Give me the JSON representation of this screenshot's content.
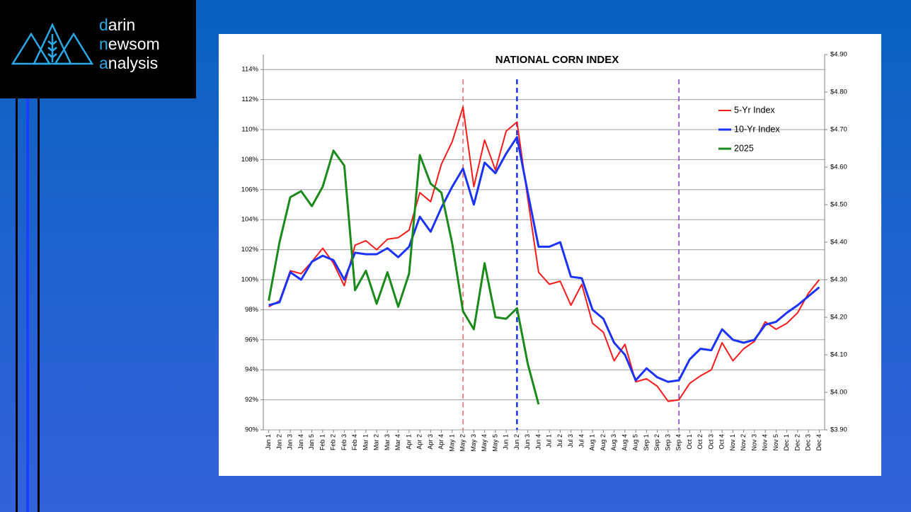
{
  "logo": {
    "lines": [
      {
        "accent": "d",
        "rest": "arin"
      },
      {
        "accent": "n",
        "rest": "ewsom"
      },
      {
        "accent": "a",
        "rest": "nalysis"
      }
    ]
  },
  "chart_data": {
    "type": "line",
    "title": "NATIONAL CORN INDEX",
    "categories": [
      "Jan 1",
      "Jan 2",
      "Jan 3",
      "Jan 4",
      "Jan 5",
      "Feb 1",
      "Feb 2",
      "Feb 3",
      "Feb 4",
      "Mar 1",
      "Mar 2",
      "Mar 3",
      "Mar 4",
      "Apr 1",
      "Apr 2",
      "Apr 3",
      "Apr 4",
      "May 1",
      "May 2",
      "May 3",
      "May 4",
      "May 5",
      "Jun 1",
      "Jun 2",
      "Jun 3",
      "Jun 4",
      "Jul 1",
      "Jul 2",
      "Jul 3",
      "Jul 4",
      "Aug 1",
      "Aug 2",
      "Aug 3",
      "Aug 4",
      "Aug 5",
      "Sep 1",
      "Sep 2",
      "Sep 3",
      "Sep 4",
      "Oct 1",
      "Oct 2",
      "Oct 3",
      "Oct 4",
      "Nov 1",
      "Nov 2",
      "Nov 3",
      "Nov 4",
      "Nov 5",
      "Dec 1",
      "Dec 2",
      "Dec 3",
      "Dec 4"
    ],
    "series": [
      {
        "name": "5-Yr Index",
        "color": "#ff1a1a",
        "width": 2,
        "values": [
          98.2,
          98.6,
          100.6,
          100.4,
          101.2,
          102.1,
          101.1,
          99.6,
          102.3,
          102.6,
          102.0,
          102.7,
          102.8,
          103.3,
          105.8,
          105.2,
          107.7,
          109.2,
          111.5,
          106.2,
          109.3,
          107.3,
          109.9,
          110.5,
          105.4,
          100.5,
          99.7,
          99.9,
          98.3,
          99.7,
          97.1,
          96.5,
          94.6,
          95.7,
          93.2,
          93.4,
          92.9,
          91.9,
          92.0,
          93.1,
          93.6,
          94.0,
          95.8,
          94.6,
          95.4,
          95.9,
          97.2,
          96.7,
          97.1,
          97.8,
          99.1,
          100.0
        ]
      },
      {
        "name": "10-Yr Index",
        "color": "#1a33ff",
        "width": 3,
        "values": [
          98.3,
          98.5,
          100.5,
          100.0,
          101.2,
          101.6,
          101.3,
          100.0,
          101.8,
          101.7,
          101.7,
          102.1,
          101.5,
          102.2,
          104.2,
          103.2,
          104.8,
          106.2,
          107.4,
          105.0,
          107.8,
          107.1,
          108.4,
          109.5,
          105.8,
          102.2,
          102.2,
          102.5,
          100.2,
          100.1,
          98.0,
          97.4,
          95.8,
          95.0,
          93.3,
          94.1,
          93.5,
          93.2,
          93.3,
          94.7,
          95.4,
          95.3,
          96.7,
          96.0,
          95.8,
          96.0,
          97.0,
          97.2,
          97.8,
          98.3,
          98.9,
          99.5
        ]
      },
      {
        "name": "2025",
        "color": "#1a8a1a",
        "width": 3,
        "values": [
          98.6,
          102.5,
          105.5,
          105.9,
          104.9,
          106.2,
          108.6,
          107.6,
          99.3,
          100.6,
          98.4,
          100.5,
          98.2,
          100.4,
          108.3,
          106.4,
          105.8,
          102.4,
          97.9,
          96.7,
          101.1,
          97.5,
          97.4,
          98.1,
          94.4,
          91.7,
          null,
          null,
          null,
          null,
          null,
          null,
          null,
          null,
          null,
          null,
          null,
          null,
          null,
          null,
          null,
          null,
          null,
          null,
          null,
          null,
          null,
          null,
          null,
          null,
          null,
          null
        ]
      }
    ],
    "ylim": [
      90,
      115
    ],
    "yticks": [
      {
        "value": 90,
        "label": "90%"
      },
      {
        "value": 92,
        "label": "92%"
      },
      {
        "value": 94,
        "label": "94%"
      },
      {
        "value": 96,
        "label": "96%"
      },
      {
        "value": 98,
        "label": "98%"
      },
      {
        "value": 100,
        "label": "100%"
      },
      {
        "value": 102,
        "label": "102%"
      },
      {
        "value": 104,
        "label": "104%"
      },
      {
        "value": 106,
        "label": "106%"
      },
      {
        "value": 108,
        "label": "108%"
      },
      {
        "value": 110,
        "label": "110%"
      },
      {
        "value": 112,
        "label": "112%"
      },
      {
        "value": 114,
        "label": "114%"
      }
    ],
    "y2lim": [
      3.9,
      4.9
    ],
    "y2ticks": [
      {
        "value": 3.9,
        "label": "$3.90"
      },
      {
        "value": 4.0,
        "label": "$4.00"
      },
      {
        "value": 4.1,
        "label": "$4.10"
      },
      {
        "value": 4.2,
        "label": "$4.20"
      },
      {
        "value": 4.3,
        "label": "$4.30"
      },
      {
        "value": 4.4,
        "label": "$4.40"
      },
      {
        "value": 4.5,
        "label": "$4.50"
      },
      {
        "value": 4.6,
        "label": "$4.60"
      },
      {
        "value": 4.7,
        "label": "$4.70"
      },
      {
        "value": 4.8,
        "label": "$4.80"
      },
      {
        "value": 4.9,
        "label": "$4.90"
      }
    ],
    "vlines": [
      {
        "x": "May 2",
        "color": "#ff6060"
      },
      {
        "x": "Jun 2",
        "color": "#1a33ff"
      },
      {
        "x": "Sep 4",
        "color": "#7a3fb8"
      }
    ],
    "grid": true,
    "legend": "upper right"
  }
}
